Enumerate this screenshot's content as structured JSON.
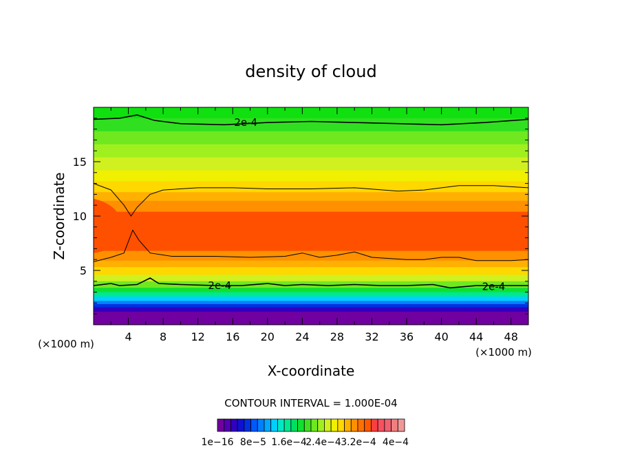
{
  "chart_data": {
    "type": "heatmap",
    "title": "density of cloud",
    "xlabel": "X-coordinate",
    "ylabel": "Z-coordinate",
    "x_unit_left": "(×1000 m)",
    "x_unit_right": "(×1000 m)",
    "xlim": [
      0,
      50
    ],
    "ylim": [
      0,
      20
    ],
    "x_ticks": [
      4,
      8,
      12,
      16,
      20,
      24,
      28,
      32,
      36,
      40,
      44,
      48
    ],
    "x_tick_labels": [
      "4",
      "8",
      "12",
      "16",
      "20",
      "24",
      "28",
      "32",
      "36",
      "40",
      "44",
      "48"
    ],
    "y_ticks": [
      5,
      10,
      15
    ],
    "y_tick_labels": [
      "5",
      "10",
      "15"
    ],
    "contour_interval_text": "CONTOUR INTERVAL = 1.000E-04",
    "contour_labels": [
      {
        "text": "2e-4",
        "x": 17.5,
        "y": 18.6
      },
      {
        "text": "2e-4",
        "x": 14.5,
        "y": 3.6
      },
      {
        "text": "2e-4",
        "x": 46,
        "y": 3.5
      }
    ],
    "colorbar": {
      "colors": [
        "#70009c",
        "#5000b0",
        "#3000c0",
        "#1010d0",
        "#0030e0",
        "#0058ff",
        "#0080ff",
        "#00a8ff",
        "#00d0ff",
        "#00e8c8",
        "#00e890",
        "#00e060",
        "#10e030",
        "#40e020",
        "#70e820",
        "#a0f020",
        "#d0f020",
        "#f0f000",
        "#ffd800",
        "#ffb000",
        "#ff9000",
        "#ff7000",
        "#ff5800",
        "#f84040",
        "#f85060",
        "#f06070",
        "#f08080",
        "#f09898"
      ],
      "labels": [
        "1e−16",
        "8e−5",
        "1.6e−4",
        "2.4e−4",
        "3.2e−4",
        "4e−4"
      ]
    },
    "layers": [
      {
        "z_top": 20,
        "color": "#10e010"
      },
      {
        "z_top": 19.0,
        "color": "#30e020"
      },
      {
        "z_top": 17.8,
        "color": "#70e820"
      },
      {
        "z_top": 16.6,
        "color": "#a0f020"
      },
      {
        "z_top": 15.4,
        "color": "#d0f020"
      },
      {
        "z_top": 14.2,
        "color": "#f0f000"
      },
      {
        "z_top": 13.2,
        "color": "#ffd800"
      },
      {
        "z_top": 12.2,
        "color": "#ffb000"
      },
      {
        "z_top": 11.4,
        "color": "#ff9000"
      },
      {
        "z_top": 10.4,
        "color": "#ff5000"
      },
      {
        "z_top": 6.8,
        "color": "#ff9000"
      },
      {
        "z_top": 5.9,
        "color": "#ffb000"
      },
      {
        "z_top": 5.3,
        "color": "#ffd800"
      },
      {
        "z_top": 4.6,
        "color": "#d0f020"
      },
      {
        "z_top": 4.0,
        "color": "#70e820"
      },
      {
        "z_top": 3.4,
        "color": "#10e030"
      },
      {
        "z_top": 3.0,
        "color": "#00e890"
      },
      {
        "z_top": 2.6,
        "color": "#00d0ff"
      },
      {
        "z_top": 2.2,
        "color": "#0080ff"
      },
      {
        "z_top": 1.9,
        "color": "#0030e0"
      },
      {
        "z_top": 1.6,
        "color": "#3000c0"
      },
      {
        "z_top": 1.2,
        "color": "#7000a0"
      }
    ],
    "contours": [
      {
        "name": "upper",
        "points": [
          [
            0,
            18.9
          ],
          [
            3,
            19.0
          ],
          [
            5,
            19.3
          ],
          [
            7,
            18.8
          ],
          [
            10,
            18.5
          ],
          [
            15,
            18.4
          ],
          [
            20,
            18.6
          ],
          [
            25,
            18.7
          ],
          [
            30,
            18.6
          ],
          [
            35,
            18.5
          ],
          [
            40,
            18.4
          ],
          [
            45,
            18.6
          ],
          [
            50,
            18.9
          ]
        ]
      },
      {
        "name": "cloud-top",
        "points": [
          [
            0,
            13.0
          ],
          [
            2,
            12.4
          ],
          [
            3.5,
            11.0
          ],
          [
            4.3,
            10.0
          ],
          [
            5,
            10.8
          ],
          [
            6.5,
            12.0
          ],
          [
            8,
            12.4
          ],
          [
            12,
            12.6
          ],
          [
            16,
            12.6
          ],
          [
            20,
            12.5
          ],
          [
            25,
            12.5
          ],
          [
            30,
            12.6
          ],
          [
            35,
            12.3
          ],
          [
            38,
            12.4
          ],
          [
            42,
            12.8
          ],
          [
            46,
            12.8
          ],
          [
            50,
            12.6
          ]
        ]
      },
      {
        "name": "cloud-base",
        "points": [
          [
            0,
            5.8
          ],
          [
            2,
            6.2
          ],
          [
            3.5,
            6.6
          ],
          [
            4.5,
            8.7
          ],
          [
            5.2,
            7.8
          ],
          [
            6.5,
            6.6
          ],
          [
            9,
            6.3
          ],
          [
            14,
            6.3
          ],
          [
            18,
            6.2
          ],
          [
            22,
            6.3
          ],
          [
            24,
            6.6
          ],
          [
            26,
            6.2
          ],
          [
            28,
            6.4
          ],
          [
            30,
            6.7
          ],
          [
            32,
            6.2
          ],
          [
            36,
            6.0
          ],
          [
            38,
            6.0
          ],
          [
            40,
            6.2
          ],
          [
            42,
            6.2
          ],
          [
            44,
            5.9
          ],
          [
            48,
            5.9
          ],
          [
            50,
            6.0
          ]
        ]
      },
      {
        "name": "lower",
        "points": [
          [
            0,
            3.6
          ],
          [
            2,
            3.8
          ],
          [
            3,
            3.6
          ],
          [
            5,
            3.7
          ],
          [
            6.5,
            4.3
          ],
          [
            7.5,
            3.8
          ],
          [
            10,
            3.7
          ],
          [
            14,
            3.6
          ],
          [
            17,
            3.6
          ],
          [
            20,
            3.8
          ],
          [
            22,
            3.6
          ],
          [
            24,
            3.7
          ],
          [
            27,
            3.6
          ],
          [
            30,
            3.7
          ],
          [
            33,
            3.6
          ],
          [
            36,
            3.6
          ],
          [
            39,
            3.7
          ],
          [
            41,
            3.4
          ],
          [
            44,
            3.6
          ],
          [
            48,
            3.6
          ],
          [
            50,
            3.6
          ]
        ]
      }
    ]
  }
}
